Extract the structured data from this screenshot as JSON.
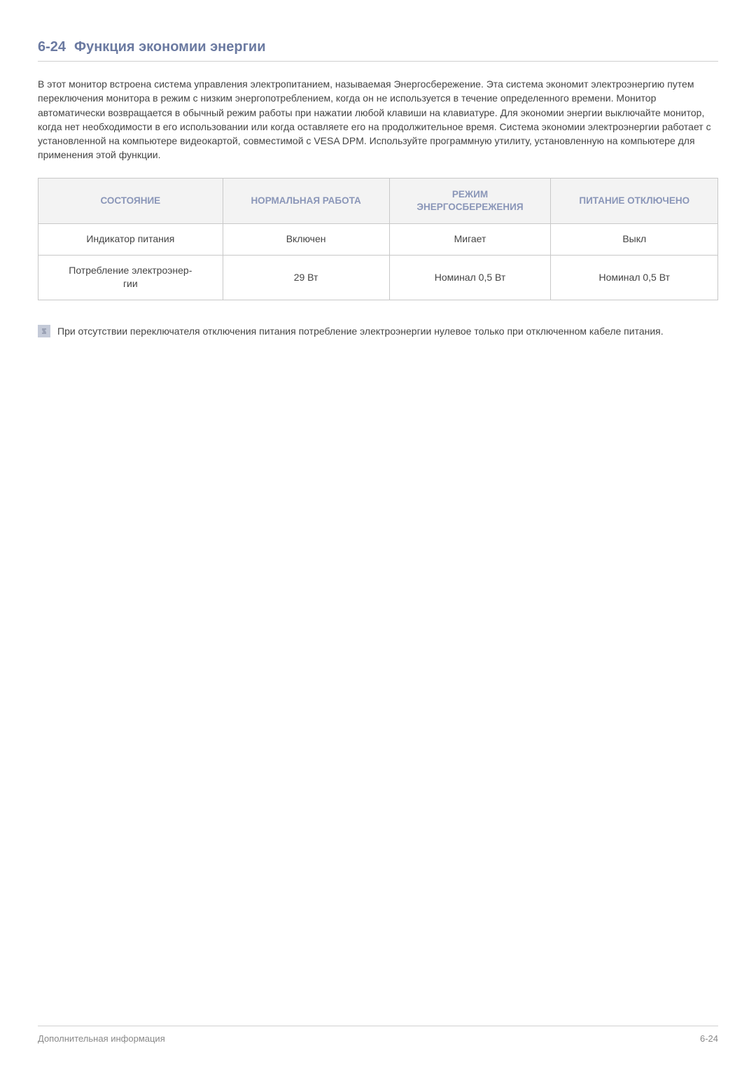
{
  "heading": {
    "number": "6-24",
    "title": "Функция экономии энергии"
  },
  "paragraph": "В этот монитор встроена система управления электропитанием, называемая Энергосбережение. Эта система экономит электроэнергию путем переключения монитора в режим с низким энергопотреблением, когда он не используется в течение определенного времени. Монитор автоматически возвращается в обычный режим работы при нажатии любой клавиши на клавиатуре. Для экономии энергии выключайте монитор, когда нет необходимости в его использовании или когда оставляете его на продолжительное время. Система экономии электроэнергии работает с установленной на компьютере видеокартой, совместимой с VESA DPM. Используйте программную утилиту, установленную на компьютере для применения этой функции.",
  "table": {
    "headers": [
      "СОСТОЯНИЕ",
      "НОРМАЛЬНАЯ РАБОТА",
      "РЕЖИМ ЭНЕРГОСБЕРЕЖЕНИЯ",
      "ПИТАНИЕ ОТКЛЮЧЕНО"
    ],
    "rows": [
      [
        "Индикатор питания",
        "Включен",
        "Мигает",
        "Выкл"
      ],
      [
        "Потребление электроэнергии",
        "29 Вт",
        "Номинал 0,5 Вт",
        "Номинал 0,5 Вт"
      ]
    ],
    "column_widths": [
      "25%",
      "25%",
      "25%",
      "25%"
    ],
    "header_bg": "#f3f3f3",
    "header_color": "#8a96b8",
    "border_color": "#c8c8c8"
  },
  "note": "При отсутствии переключателя отключения питания потребление электроэнергии нулевое только при отключенном кабеле питания.",
  "footer": {
    "left": "Дополнительная информация",
    "right_prefix": "6-",
    "right_num": "24"
  },
  "colors": {
    "heading": "#6b7aa1",
    "body_text": "#444444",
    "footer_text": "#888888",
    "divider": "#d0d0d0",
    "note_icon_bg": "#c4cad8"
  }
}
